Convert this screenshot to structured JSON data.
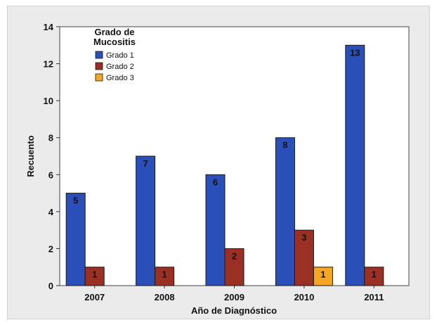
{
  "chart_data": {
    "type": "bar",
    "title": "",
    "xlabel": "Año de Diagnóstico",
    "ylabel": "Recuento",
    "categories": [
      "2007",
      "2008",
      "2009",
      "2010",
      "2011"
    ],
    "ylim": [
      0,
      14
    ],
    "yticks": [
      0,
      2,
      4,
      6,
      8,
      10,
      12,
      14
    ],
    "grid": false,
    "legend": {
      "title_lines": [
        "Grado de",
        "Mucositis"
      ],
      "placement": "top-left"
    },
    "series": [
      {
        "name": "Grado 1",
        "color": "#2b4fb8",
        "values": [
          5,
          7,
          6,
          8,
          13
        ]
      },
      {
        "name": "Grado 2",
        "color": "#9a2f24",
        "values": [
          1,
          1,
          2,
          3,
          1
        ]
      },
      {
        "name": "Grado 3",
        "color": "#f5a623",
        "values": [
          null,
          null,
          null,
          1,
          null
        ]
      }
    ]
  }
}
